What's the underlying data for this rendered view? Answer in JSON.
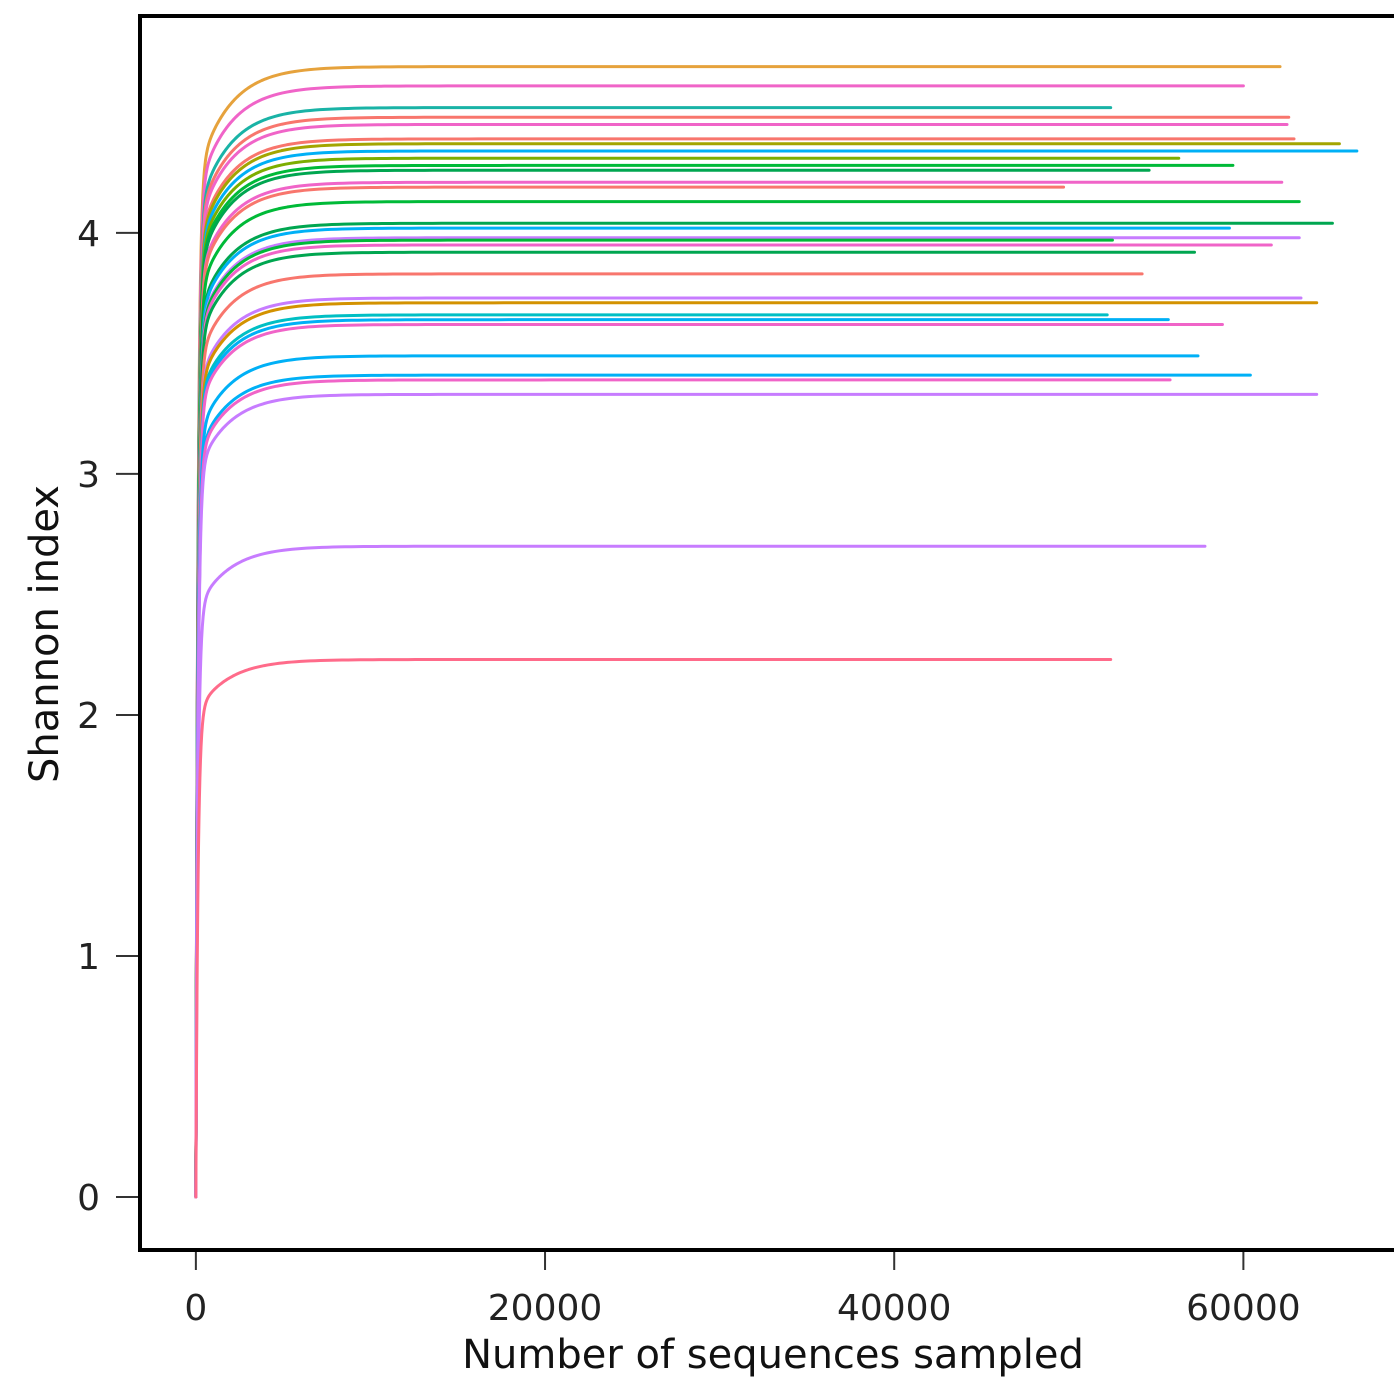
{
  "chart_data": {
    "type": "line",
    "title": "",
    "xlabel": "Number of sequences sampled",
    "ylabel": "Shannon index",
    "xlim": [
      -3200,
      69200
    ],
    "ylim": [
      -0.22,
      4.9
    ],
    "x_ticks": [
      {
        "value": 0,
        "label": "0"
      },
      {
        "value": 20000,
        "label": "20000"
      },
      {
        "value": 40000,
        "label": "40000"
      },
      {
        "value": 60000,
        "label": "60000"
      }
    ],
    "y_ticks": [
      {
        "value": 0,
        "label": "0"
      },
      {
        "value": 1,
        "label": "1"
      },
      {
        "value": 2,
        "label": "2"
      },
      {
        "value": 3,
        "label": "3"
      },
      {
        "value": 4,
        "label": "4"
      }
    ],
    "grid": false,
    "legend": "none",
    "series": [
      {
        "color": "#E6A23C",
        "plateau": 4.69,
        "max_x": 62100
      },
      {
        "color": "#F064C8",
        "plateau": 4.61,
        "max_x": 60000
      },
      {
        "color": "#19B3A6",
        "plateau": 4.52,
        "max_x": 52400
      },
      {
        "color": "#F8766D",
        "plateau": 4.48,
        "max_x": 62600
      },
      {
        "color": "#F064C8",
        "plateau": 4.45,
        "max_x": 62500
      },
      {
        "color": "#F8766D",
        "plateau": 4.39,
        "max_x": 62900
      },
      {
        "color": "#A3A500",
        "plateau": 4.37,
        "max_x": 65500
      },
      {
        "color": "#00B0F6",
        "plateau": 4.34,
        "max_x": 66500
      },
      {
        "color": "#7CAE00",
        "plateau": 4.31,
        "max_x": 56300
      },
      {
        "color": "#00BA38",
        "plateau": 4.28,
        "max_x": 59400
      },
      {
        "color": "#00A650",
        "plateau": 4.26,
        "max_x": 54600
      },
      {
        "color": "#F064C8",
        "plateau": 4.21,
        "max_x": 62200
      },
      {
        "color": "#F8766D",
        "plateau": 4.19,
        "max_x": 49700
      },
      {
        "color": "#00BA38",
        "plateau": 4.13,
        "max_x": 63200
      },
      {
        "color": "#00A650",
        "plateau": 4.04,
        "max_x": 65100
      },
      {
        "color": "#00B0F6",
        "plateau": 4.02,
        "max_x": 59200
      },
      {
        "color": "#C77CFF",
        "plateau": 3.98,
        "max_x": 63200
      },
      {
        "color": "#00BA38",
        "plateau": 3.97,
        "max_x": 52500
      },
      {
        "color": "#F064C8",
        "plateau": 3.95,
        "max_x": 61600
      },
      {
        "color": "#00A650",
        "plateau": 3.92,
        "max_x": 57200
      },
      {
        "color": "#F8766D",
        "plateau": 3.83,
        "max_x": 54200
      },
      {
        "color": "#C77CFF",
        "plateau": 3.73,
        "max_x": 63300
      },
      {
        "color": "#D39200",
        "plateau": 3.71,
        "max_x": 64200
      },
      {
        "color": "#00BFC4",
        "plateau": 3.66,
        "max_x": 52200
      },
      {
        "color": "#00B0F6",
        "plateau": 3.64,
        "max_x": 55700
      },
      {
        "color": "#F064C8",
        "plateau": 3.62,
        "max_x": 58800
      },
      {
        "color": "#00B0F6",
        "plateau": 3.49,
        "max_x": 57400
      },
      {
        "color": "#00B0F6",
        "plateau": 3.41,
        "max_x": 60400
      },
      {
        "color": "#F064C8",
        "plateau": 3.39,
        "max_x": 55800
      },
      {
        "color": "#C77CFF",
        "plateau": 3.33,
        "max_x": 64200
      },
      {
        "color": "#C77CFF",
        "plateau": 2.7,
        "max_x": 57800
      },
      {
        "color": "#FF6B8A",
        "plateau": 2.23,
        "max_x": 52400
      }
    ]
  }
}
